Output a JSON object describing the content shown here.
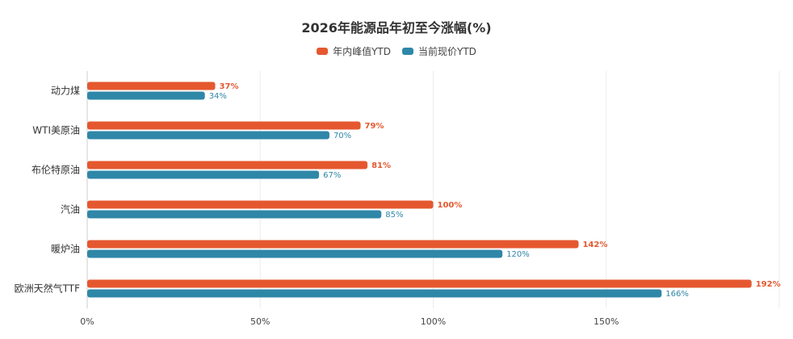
{
  "chart_data": {
    "type": "bar",
    "orientation": "horizontal",
    "title": "2026年能源品年初至今涨幅(%)",
    "categories": [
      "动力煤",
      "WTI美原油",
      "布伦特原油",
      "汽油",
      "暖炉油",
      "欧洲天然气TTF"
    ],
    "series": [
      {
        "name": "年内峰值YTD",
        "color": "#E5582F",
        "values": [
          37,
          79,
          81,
          100,
          142,
          192
        ],
        "labels": [
          "37%",
          "79%",
          "81%",
          "100%",
          "142%",
          "192%"
        ]
      },
      {
        "name": "当前现价YTD",
        "color": "#2F87A8",
        "values": [
          34,
          70,
          67,
          85,
          120,
          166
        ],
        "labels": [
          "34%",
          "70%",
          "67%",
          "85%",
          "120%",
          "166%"
        ]
      }
    ],
    "x_ticks": [
      "0%",
      "50%",
      "100%",
      "150%"
    ],
    "xlim": [
      0,
      200
    ],
    "grid": true,
    "legend_position": "top-center"
  }
}
